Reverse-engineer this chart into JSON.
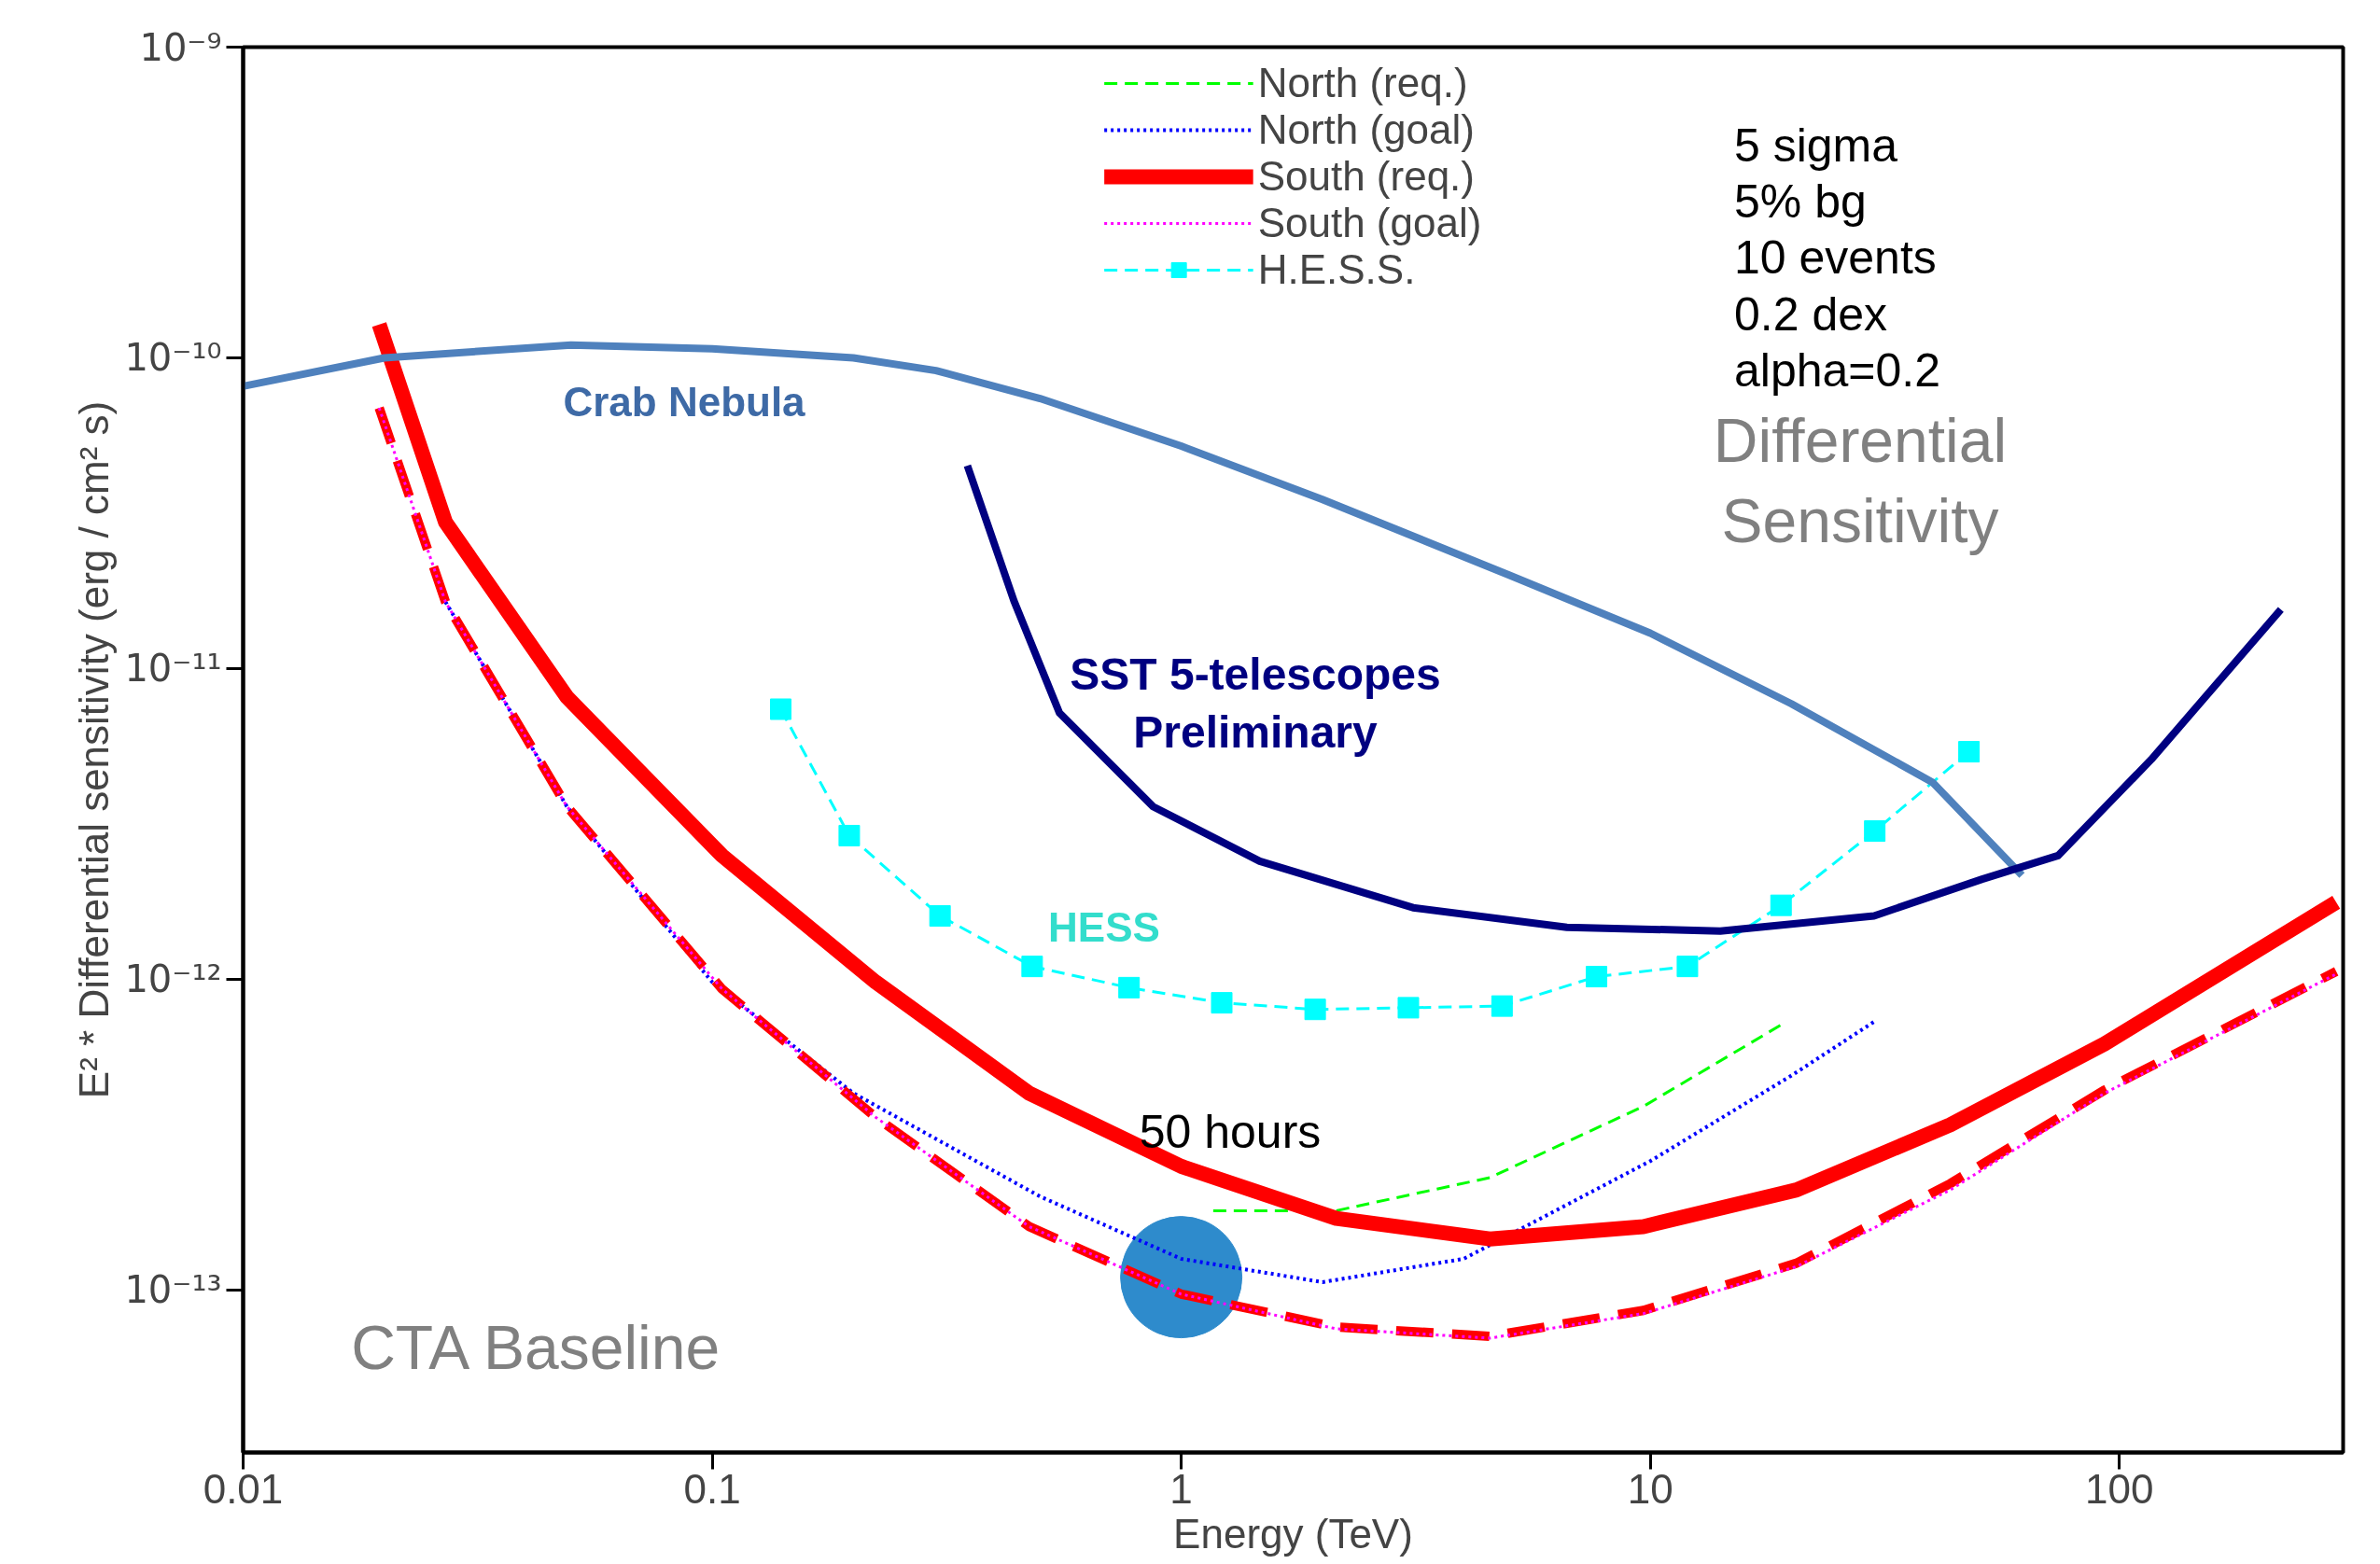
{
  "chart_data": {
    "type": "line",
    "xlabel": "Energy (TeV)",
    "ylabel": "E² * Differential sensitivity (erg / cm² s)",
    "log": "xy",
    "grid": false,
    "legend": "top",
    "xlim": [
      0.01,
      300
    ],
    "ylim": [
      3e-14,
      1e-09
    ],
    "xticks": [
      0.01,
      0.1,
      1,
      10,
      100
    ],
    "yticks": [
      {
        "value": 1e-13,
        "label": "10⁻¹³"
      },
      {
        "value": 1e-12,
        "label": "10⁻¹²"
      },
      {
        "value": 1e-11,
        "label": "10⁻¹¹"
      },
      {
        "value": 1e-10,
        "label": "10⁻¹⁰"
      },
      {
        "value": 1e-09,
        "label": "10⁻⁹"
      }
    ],
    "series": [
      {
        "name": "North (req.)",
        "color": "#00ff00",
        "line_style": "dashed",
        "x": [
          1.17,
          2.14,
          4.55,
          9.67,
          19.5
        ],
        "values": [
          1.8e-13,
          1.8e-13,
          2.3e-13,
          3.9e-13,
          7.3e-13
        ]
      },
      {
        "name": "North (goal)",
        "color": "#0000ff",
        "line_style": "dotted",
        "x": [
          0.027,
          0.049,
          0.1,
          0.2,
          0.5,
          1,
          2,
          4,
          10,
          20,
          30
        ],
        "values": [
          1.64e-11,
          3.6e-12,
          9.8e-13,
          4.3e-13,
          2e-13,
          1.26e-13,
          1.06e-13,
          1.26e-13,
          2.6e-13,
          4.9e-13,
          7.3e-13
        ]
      },
      {
        "name": "South (req.)",
        "color": "#ff0000",
        "line_style": "solid",
        "x": [
          0.0195,
          0.027,
          0.049,
          0.105,
          0.223,
          0.474,
          1.0,
          2.14,
          4.55,
          9.67,
          20.5,
          43.6,
          93,
          290
        ],
        "values": [
          1.28e-10,
          2.96e-11,
          8.1e-12,
          2.5e-12,
          9.8e-13,
          4.3e-13,
          2.5e-13,
          1.7e-13,
          1.46e-13,
          1.6e-13,
          2.1e-13,
          3.4e-13,
          6.2e-13,
          1.77e-12
        ]
      },
      {
        "color": "#ff0000",
        "line_style": "dashed",
        "x": [
          0.0195,
          0.027,
          0.049,
          0.105,
          0.223,
          0.474,
          1.0,
          2.14,
          4.55,
          9.67,
          20.5,
          43.6,
          93,
          290
        ],
        "values": [
          6.9e-11,
          1.64e-11,
          3.6e-12,
          9.3e-13,
          3.6e-13,
          1.6e-13,
          9.7e-14,
          7.6e-14,
          7.1e-14,
          8.6e-14,
          1.22e-13,
          2.2e-13,
          4.4e-13,
          1.06e-12
        ]
      },
      {
        "name": "South (goal)",
        "color": "#ff00ff",
        "line_style": "dotted",
        "x": [
          0.0195,
          0.027,
          0.049,
          0.105,
          0.223,
          0.474,
          1.0,
          2.14,
          4.55,
          9.67,
          20.5,
          43.6,
          93,
          290
        ],
        "values": [
          6.9e-11,
          1.64e-11,
          3.6e-12,
          9.3e-13,
          3.6e-13,
          1.6e-13,
          9.7e-14,
          7.5e-14,
          7e-14,
          8.4e-14,
          1.19e-13,
          2.1e-13,
          4.3e-13,
          1.04e-12
        ]
      },
      {
        "name": "H.E.S.S.",
        "color": "#00ffff",
        "line_style": "dashed",
        "marker": "square",
        "x": [
          0.14,
          0.196,
          0.306,
          0.481,
          0.774,
          1.22,
          1.93,
          3.05,
          4.83,
          7.68,
          12.0,
          19.0,
          30.1,
          47.8
        ],
        "values": [
          7.4e-12,
          2.9e-12,
          1.6e-12,
          1.1e-12,
          9.4e-13,
          8.4e-13,
          8e-13,
          8.1e-13,
          8.2e-13,
          1.02e-12,
          1.1e-12,
          1.73e-12,
          3e-12,
          5.4e-12
        ]
      },
      {
        "color": "#4f81bd",
        "line_style": "solid",
        "x": [
          0.01,
          0.02,
          0.05,
          0.1,
          0.2,
          0.3,
          0.5,
          1,
          2,
          5,
          10,
          20,
          40,
          62
        ],
        "values": [
          8.1e-11,
          1e-10,
          1.1e-10,
          1.07e-10,
          1e-10,
          9.1e-11,
          7.4e-11,
          5.2e-11,
          3.5e-11,
          2e-11,
          1.3e-11,
          7.7e-12,
          4.3e-12,
          2.16e-12
        ]
      },
      {
        "color": "#000080",
        "line_style": "solid",
        "x": [
          0.35,
          0.44,
          0.55,
          0.87,
          1.47,
          3.12,
          6.64,
          14.1,
          30,
          51,
          74,
          117,
          221
        ],
        "values": [
          4.5e-11,
          1.65e-11,
          7.2e-12,
          3.6e-12,
          2.4e-12,
          1.7e-12,
          1.47e-12,
          1.43e-12,
          1.6e-12,
          2.1e-12,
          2.5e-12,
          5.1e-12,
          1.55e-11
        ]
      },
      {
        "type": "scatter",
        "color": "#2e8bcc",
        "marker": "circle",
        "x": [
          1
        ],
        "values": [
          1.1e-13
        ]
      }
    ],
    "annotations": [
      "Crab Nebula",
      "SST 5-telescopes Preliminary",
      "HESS",
      "50 hours",
      "5 sigma",
      "5% bg",
      "10 events",
      "0.2 dex",
      "alpha=0.2",
      "Differential Sensitivity",
      "CTA Baseline"
    ]
  }
}
